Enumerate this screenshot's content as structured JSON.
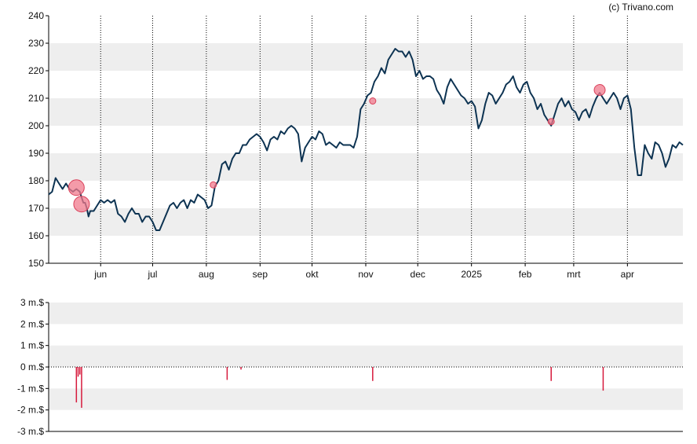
{
  "credit": "(c) Trivano.com",
  "colors": {
    "line": "#0d3352",
    "marker_fill": "#f07a8c",
    "marker_stroke": "#d9405a",
    "bar": "#d61a3c",
    "band": "#eeeeee",
    "axis": "#000000"
  },
  "chart_data": [
    {
      "type": "line",
      "ylim": [
        150,
        240
      ],
      "y_ticks": [
        "150",
        "160",
        "170",
        "180",
        "190",
        "200",
        "210",
        "220",
        "230",
        "240"
      ],
      "x_ticks": [
        {
          "label": "jun",
          "day": 30
        },
        {
          "label": "jul",
          "day": 60
        },
        {
          "label": "aug",
          "day": 91
        },
        {
          "label": "sep",
          "day": 122
        },
        {
          "label": "okt",
          "day": 152
        },
        {
          "label": "nov",
          "day": 183
        },
        {
          "label": "dec",
          "day": 213
        },
        {
          "label": "2025",
          "day": 244
        },
        {
          "label": "feb",
          "day": 275
        },
        {
          "label": "mrt",
          "day": 303
        },
        {
          "label": "apr",
          "day": 334
        }
      ],
      "x_range": [
        0,
        366
      ],
      "price": [
        [
          0,
          175
        ],
        [
          2,
          176
        ],
        [
          4,
          181
        ],
        [
          6,
          179
        ],
        [
          8,
          177
        ],
        [
          10,
          179
        ],
        [
          12,
          177
        ],
        [
          14,
          176
        ],
        [
          16,
          177
        ],
        [
          18,
          176
        ],
        [
          19,
          174
        ],
        [
          20,
          172
        ],
        [
          21,
          172
        ],
        [
          22,
          170
        ],
        [
          23,
          167
        ],
        [
          24,
          169
        ],
        [
          26,
          169
        ],
        [
          28,
          171
        ],
        [
          30,
          173
        ],
        [
          32,
          172
        ],
        [
          34,
          173
        ],
        [
          36,
          172
        ],
        [
          38,
          173
        ],
        [
          40,
          168
        ],
        [
          42,
          167
        ],
        [
          44,
          165
        ],
        [
          46,
          168
        ],
        [
          48,
          170
        ],
        [
          50,
          168
        ],
        [
          52,
          168
        ],
        [
          54,
          165
        ],
        [
          56,
          167
        ],
        [
          58,
          167
        ],
        [
          60,
          165
        ],
        [
          62,
          162
        ],
        [
          64,
          162
        ],
        [
          66,
          165
        ],
        [
          68,
          168
        ],
        [
          70,
          171
        ],
        [
          72,
          172
        ],
        [
          74,
          170
        ],
        [
          76,
          172
        ],
        [
          78,
          173
        ],
        [
          80,
          170
        ],
        [
          82,
          173
        ],
        [
          84,
          172
        ],
        [
          86,
          175
        ],
        [
          88,
          174
        ],
        [
          90,
          173
        ],
        [
          92,
          170
        ],
        [
          94,
          171
        ],
        [
          96,
          178
        ],
        [
          98,
          180
        ],
        [
          100,
          186
        ],
        [
          102,
          187
        ],
        [
          104,
          184
        ],
        [
          106,
          188
        ],
        [
          108,
          190
        ],
        [
          110,
          190
        ],
        [
          112,
          193
        ],
        [
          114,
          193
        ],
        [
          116,
          195
        ],
        [
          118,
          196
        ],
        [
          120,
          197
        ],
        [
          122,
          196
        ],
        [
          124,
          194
        ],
        [
          126,
          191
        ],
        [
          128,
          195
        ],
        [
          130,
          196
        ],
        [
          132,
          195
        ],
        [
          134,
          198
        ],
        [
          136,
          197
        ],
        [
          138,
          199
        ],
        [
          140,
          200
        ],
        [
          142,
          199
        ],
        [
          144,
          197
        ],
        [
          146,
          187
        ],
        [
          148,
          192
        ],
        [
          150,
          194
        ],
        [
          152,
          196
        ],
        [
          154,
          195
        ],
        [
          156,
          198
        ],
        [
          158,
          197
        ],
        [
          160,
          193
        ],
        [
          162,
          194
        ],
        [
          164,
          193
        ],
        [
          166,
          192
        ],
        [
          168,
          194
        ],
        [
          170,
          193
        ],
        [
          172,
          193
        ],
        [
          174,
          193
        ],
        [
          176,
          192
        ],
        [
          178,
          196
        ],
        [
          180,
          206
        ],
        [
          182,
          208
        ],
        [
          184,
          211
        ],
        [
          186,
          212
        ],
        [
          188,
          216
        ],
        [
          190,
          218
        ],
        [
          192,
          221
        ],
        [
          194,
          219
        ],
        [
          196,
          224
        ],
        [
          198,
          226
        ],
        [
          200,
          228
        ],
        [
          202,
          227
        ],
        [
          204,
          227
        ],
        [
          206,
          225
        ],
        [
          208,
          227
        ],
        [
          210,
          224
        ],
        [
          212,
          218
        ],
        [
          214,
          220
        ],
        [
          216,
          217
        ],
        [
          218,
          218
        ],
        [
          220,
          218
        ],
        [
          222,
          217
        ],
        [
          224,
          213
        ],
        [
          226,
          211
        ],
        [
          228,
          208
        ],
        [
          230,
          214
        ],
        [
          232,
          217
        ],
        [
          234,
          215
        ],
        [
          236,
          213
        ],
        [
          238,
          211
        ],
        [
          240,
          210
        ],
        [
          242,
          208
        ],
        [
          244,
          209
        ],
        [
          246,
          207
        ],
        [
          248,
          199
        ],
        [
          250,
          202
        ],
        [
          252,
          208
        ],
        [
          254,
          212
        ],
        [
          256,
          211
        ],
        [
          258,
          208
        ],
        [
          260,
          210
        ],
        [
          262,
          212
        ],
        [
          264,
          215
        ],
        [
          266,
          216
        ],
        [
          268,
          218
        ],
        [
          270,
          214
        ],
        [
          272,
          212
        ],
        [
          274,
          215
        ],
        [
          276,
          216
        ],
        [
          278,
          212
        ],
        [
          280,
          210
        ],
        [
          282,
          206
        ],
        [
          284,
          208
        ],
        [
          286,
          204
        ],
        [
          288,
          202
        ],
        [
          290,
          200
        ],
        [
          292,
          204
        ],
        [
          294,
          208
        ],
        [
          296,
          210
        ],
        [
          298,
          207
        ],
        [
          300,
          209
        ],
        [
          302,
          206
        ],
        [
          304,
          205
        ],
        [
          306,
          202
        ],
        [
          308,
          205
        ],
        [
          310,
          206
        ],
        [
          312,
          203
        ],
        [
          314,
          207
        ],
        [
          316,
          210
        ],
        [
          318,
          212
        ],
        [
          320,
          210
        ],
        [
          322,
          208
        ],
        [
          324,
          210
        ],
        [
          326,
          212
        ],
        [
          328,
          210
        ],
        [
          330,
          206
        ],
        [
          332,
          210
        ],
        [
          334,
          211
        ],
        [
          336,
          206
        ],
        [
          338,
          192
        ],
        [
          340,
          182
        ],
        [
          342,
          182
        ],
        [
          344,
          193
        ],
        [
          346,
          190
        ],
        [
          348,
          188
        ],
        [
          350,
          194
        ],
        [
          352,
          193
        ],
        [
          354,
          190
        ],
        [
          356,
          185
        ],
        [
          358,
          188
        ],
        [
          360,
          193
        ],
        [
          362,
          192
        ],
        [
          364,
          194
        ],
        [
          366,
          193
        ]
      ],
      "markers": [
        {
          "day": 16,
          "value": 177.5,
          "size": "large"
        },
        {
          "day": 19,
          "value": 171.5,
          "size": "large"
        },
        {
          "day": 95,
          "value": 178.5,
          "size": "small"
        },
        {
          "day": 187,
          "value": 209,
          "size": "small"
        },
        {
          "day": 290,
          "value": 201.5,
          "size": "small"
        },
        {
          "day": 318,
          "value": 213,
          "size": "medium"
        }
      ]
    },
    {
      "type": "bar",
      "ylim": [
        -3,
        3
      ],
      "y_ticks": [
        "3 m.$",
        "2 m.$",
        "1 m.$",
        "0 m.$",
        "-1 m.$",
        "-2 m.$",
        "-3 m.$"
      ],
      "bars": [
        {
          "day": 16,
          "value": -1.65
        },
        {
          "day": 17,
          "value": -0.45
        },
        {
          "day": 18,
          "value": -0.35
        },
        {
          "day": 19,
          "value": -1.9
        },
        {
          "day": 103,
          "value": -0.6
        },
        {
          "day": 111,
          "value": -0.12
        },
        {
          "day": 187,
          "value": -0.65
        },
        {
          "day": 290,
          "value": -0.65
        },
        {
          "day": 320,
          "value": -1.1
        }
      ]
    }
  ]
}
